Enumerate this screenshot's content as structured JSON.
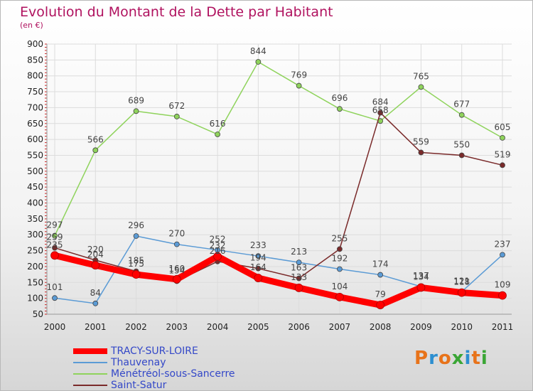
{
  "title": "Evolution du Montant de la Dette par Habitant",
  "subtitle": "(en €)",
  "logo": "Proxiti",
  "chart_data": {
    "type": "line",
    "x": [
      2000,
      2001,
      2002,
      2003,
      2004,
      2005,
      2006,
      2007,
      2008,
      2009,
      2010,
      2011
    ],
    "ylim": [
      50,
      900
    ],
    "yticks": [
      50,
      100,
      150,
      200,
      250,
      300,
      350,
      400,
      450,
      500,
      550,
      600,
      650,
      700,
      750,
      800,
      850,
      900
    ],
    "grid": true,
    "legend_placement": "bottom-left",
    "series": [
      {
        "name": "TRACY-SUR-LOIRE",
        "color": "#ff0000",
        "values": [
          235,
          204,
          175,
          160,
          232,
          164,
          133,
          104,
          79,
          134,
          118,
          109
        ]
      },
      {
        "name": "Thauvenay",
        "color": "#5b9bd5",
        "values": [
          101,
          84,
          296,
          270,
          252,
          233,
          213,
          192,
          174,
          137,
          121,
          237
        ]
      },
      {
        "name": "Ménétréol-sous-Sancerre",
        "color": "#8fd35c",
        "values": [
          297,
          566,
          689,
          672,
          616,
          844,
          769,
          696,
          658,
          765,
          677,
          605
        ]
      },
      {
        "name": "Saint-Satur",
        "color": "#7a2a2a",
        "values": [
          259,
          220,
          185,
          154,
          216,
          194,
          163,
          255,
          684,
          559,
          550,
          519
        ]
      }
    ]
  }
}
